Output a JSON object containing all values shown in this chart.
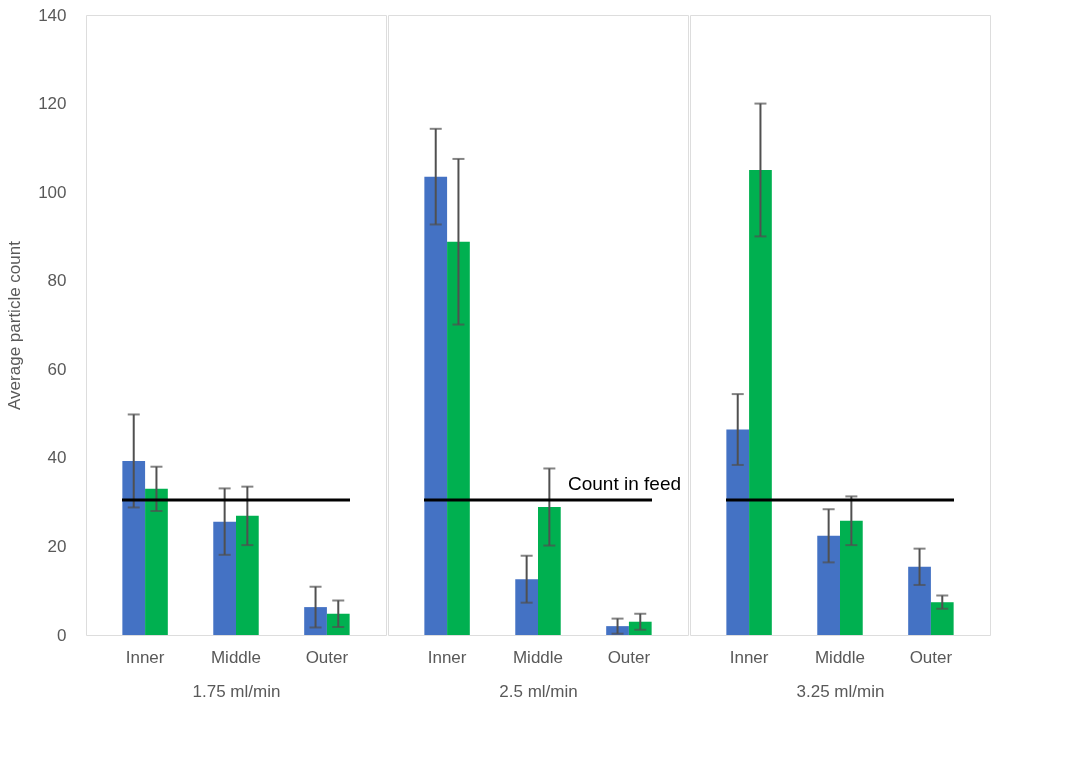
{
  "chart_data": [
    {
      "type": "bar",
      "ylabel": "Average particle count",
      "xlabel": "1.75 ml/min",
      "categories": [
        "Inner",
        "Middle",
        "Outer"
      ],
      "series": [
        {
          "color": "#4472c4",
          "values": [
            39.3,
            25.6,
            6.3
          ],
          "errors": [
            10.5,
            7.5,
            4.6
          ]
        },
        {
          "color": "#00b050",
          "values": [
            33.0,
            26.9,
            4.8
          ],
          "errors": [
            5,
            6.6,
            3
          ]
        }
      ],
      "ylim": [
        0,
        140
      ],
      "yticks": [
        0,
        20,
        40,
        60,
        80,
        100,
        120,
        140
      ],
      "grid": false,
      "ref_lines": [
        {
          "axis": "y",
          "value": 30.5,
          "color": "#000000"
        }
      ]
    },
    {
      "type": "bar",
      "xlabel": "2.5 ml/min",
      "categories": [
        "Inner",
        "Middle",
        "Outer"
      ],
      "series": [
        {
          "color": "#4472c4",
          "values": [
            103.5,
            12.6,
            2.0
          ],
          "errors": [
            10.8,
            5.3,
            1.7
          ]
        },
        {
          "color": "#00b050",
          "values": [
            88.8,
            28.9,
            3.0
          ],
          "errors": [
            18.7,
            8.7,
            1.8
          ]
        }
      ],
      "ylim": [
        0,
        140
      ],
      "yticks": [
        0,
        20,
        40,
        60,
        80,
        100,
        120,
        140
      ],
      "tick_labels": "x",
      "grid": false,
      "ref_lines": [
        {
          "axis": "y",
          "value": 30.5,
          "label": "Count in feed",
          "color": "#000000"
        }
      ]
    },
    {
      "type": "bar",
      "xlabel": "3.25 ml/min",
      "categories": [
        "Inner",
        "Middle",
        "Outer"
      ],
      "series": [
        {
          "color": "#4472c4",
          "values": [
            46.4,
            22.4,
            15.4
          ],
          "errors": [
            8,
            6,
            4.1
          ]
        },
        {
          "color": "#00b050",
          "values": [
            105,
            25.8,
            7.4
          ],
          "errors": [
            15,
            5.5,
            1.5
          ]
        }
      ],
      "ylim": [
        0,
        140
      ],
      "yticks": [
        0,
        20,
        40,
        60,
        80,
        100,
        120,
        140
      ],
      "tick_labels": "x",
      "grid": false,
      "ref_lines": [
        {
          "axis": "y",
          "value": 30.5,
          "color": "#000000"
        }
      ]
    }
  ]
}
